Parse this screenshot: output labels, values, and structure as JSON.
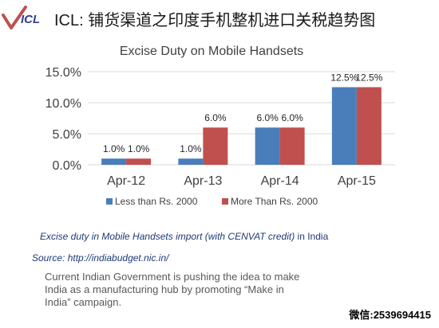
{
  "header": {
    "logo_text": "ICL",
    "title": "ICL: 铺货渠道之印度手机整机进口关税趋势图"
  },
  "chart_data": {
    "type": "bar",
    "title": "Excise Duty on Mobile Handsets",
    "categories": [
      "Apr-12",
      "Apr-13",
      "Apr-14",
      "Apr-15"
    ],
    "series": [
      {
        "name": "Less than Rs. 2000",
        "values": [
          1.0,
          1.0,
          6.0,
          12.5
        ],
        "labels": [
          "1.0%",
          "1.0%",
          "6.0%",
          "12.5%"
        ],
        "color": "#4a7ebb"
      },
      {
        "name": "More Than Rs. 2000",
        "values": [
          1.0,
          6.0,
          6.0,
          12.5
        ],
        "labels": [
          "1.0%",
          "6.0%",
          "6.0%",
          "12.5%"
        ],
        "color": "#c0504d"
      }
    ],
    "ylim": [
      0,
      15
    ],
    "yticks": [
      "0.0%",
      "5.0%",
      "10.0%",
      "15.0%"
    ],
    "ytick_values": [
      0,
      5,
      10,
      15
    ],
    "xlabel": "",
    "ylabel": "",
    "grid": true,
    "legend": "bottom"
  },
  "caption": {
    "italic": "Excise duty in Mobile Handsets import (with CENVAT credit)",
    "normal": " in India"
  },
  "source": "Source: http://indiabudget.nic.in/",
  "note": "Current Indian Government is pushing the idea to make India as a manufacturing hub by promoting “Make in India” campaign.",
  "wechat": "微信:2539694415",
  "colors": {
    "blue": "#4a7ebb",
    "red": "#c0504d",
    "caption": "#1f3a75"
  }
}
